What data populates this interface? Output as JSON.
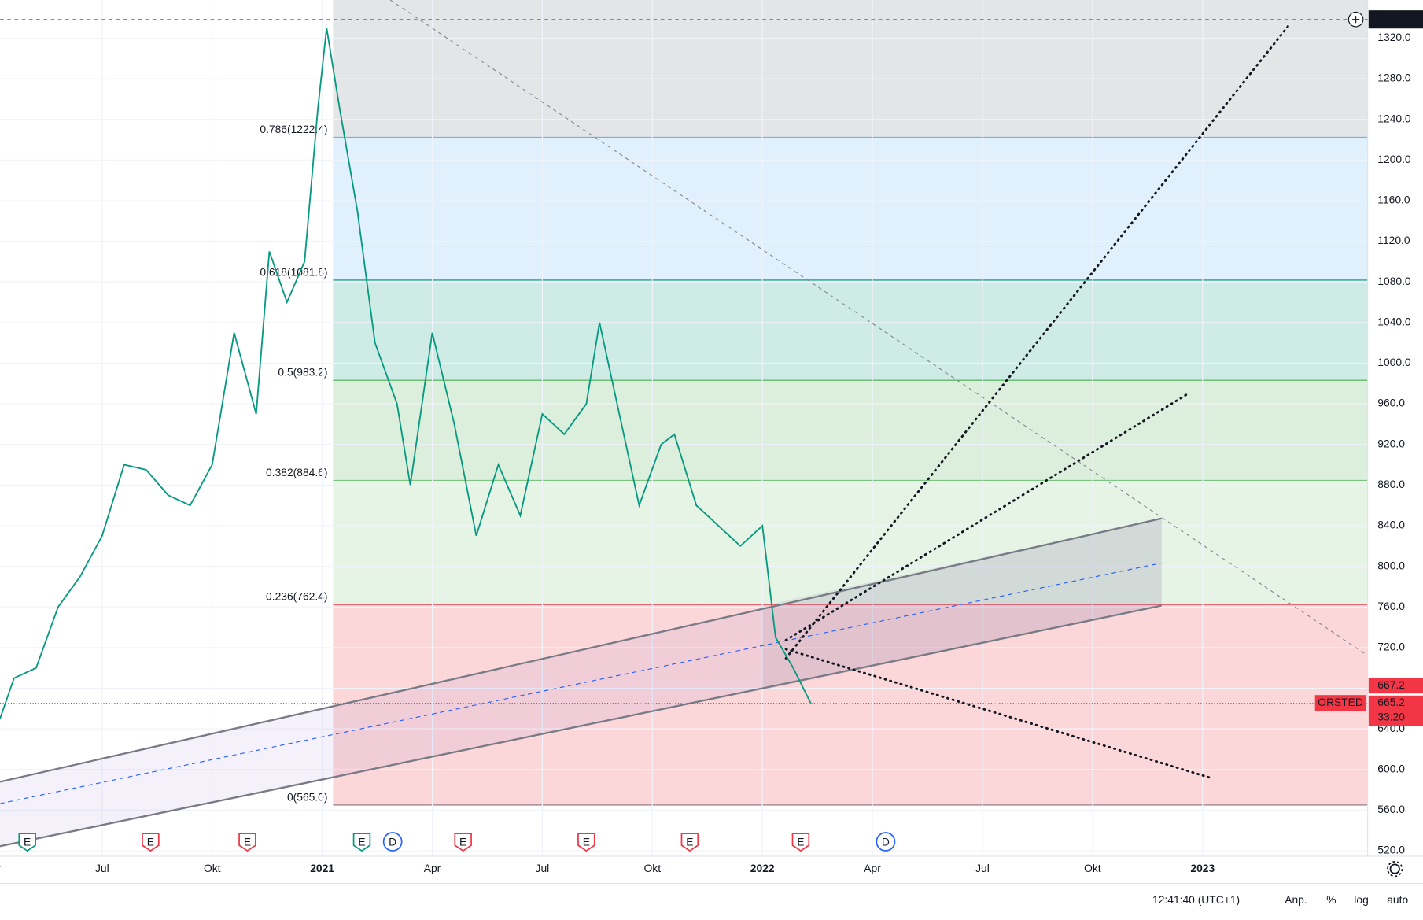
{
  "chart_data": {
    "type": "line",
    "symbol": "ORSTED",
    "x": [
      2020.268,
      2020.3,
      2020.35,
      2020.4,
      2020.45,
      2020.5,
      2020.55,
      2020.6,
      2020.65,
      2020.7,
      2020.75,
      2020.8,
      2020.85,
      2020.88,
      2020.92,
      2020.96,
      2020.99,
      2021.01,
      2021.04,
      2021.08,
      2021.12,
      2021.17,
      2021.2,
      2021.25,
      2021.3,
      2021.35,
      2021.4,
      2021.45,
      2021.5,
      2021.55,
      2021.6,
      2021.63,
      2021.67,
      2021.72,
      2021.77,
      2021.8,
      2021.85,
      2021.9,
      2021.95,
      2022.0,
      2022.03,
      2022.07,
      2022.11
    ],
    "series": [
      {
        "color": "#089981",
        "values": [
          650,
          690,
          700,
          760,
          790,
          830,
          900,
          895,
          870,
          860,
          900,
          1030,
          950,
          1110,
          1060,
          1100,
          1250,
          1330,
          1250,
          1150,
          1020,
          960,
          880,
          1030,
          940,
          830,
          900,
          850,
          950,
          930,
          960,
          1040,
          960,
          860,
          920,
          930,
          860,
          840,
          820,
          840,
          730,
          700,
          665.2
        ]
      }
    ],
    "xlim": [
      2020.268,
      2023.375
    ],
    "ylim": [
      514.6,
      1357.5
    ],
    "xticks": [
      {
        "value": 2020.25,
        "label": "Apr"
      },
      {
        "value": 2020.5,
        "label": "Jul"
      },
      {
        "value": 2020.75,
        "label": "Okt"
      },
      2021,
      {
        "value": 2021.25,
        "label": "Apr"
      },
      {
        "value": 2021.5,
        "label": "Jul"
      },
      {
        "value": 2021.75,
        "label": "Okt"
      },
      2022,
      {
        "value": 2022.25,
        "label": "Apr"
      },
      {
        "value": 2022.5,
        "label": "Jul"
      },
      {
        "value": 2022.75,
        "label": "Okt"
      },
      2023
    ],
    "yticks": [
      {
        "value": 520,
        "label": "520.0"
      },
      {
        "value": 560,
        "label": "560.0"
      },
      {
        "value": 600,
        "label": "600.0"
      },
      {
        "value": 640,
        "label": "640.0"
      },
      {
        "value": 680,
        "label": "680.0"
      },
      {
        "value": 720,
        "label": "720.0"
      },
      {
        "value": 760,
        "label": "760.0"
      },
      {
        "value": 800,
        "label": "800.0"
      },
      {
        "value": 840,
        "label": "840.0"
      },
      {
        "value": 880,
        "label": "880.0"
      },
      {
        "value": 920,
        "label": "920.0"
      },
      {
        "value": 960,
        "label": "960.0"
      },
      {
        "value": 1000,
        "label": "1000.0"
      },
      {
        "value": 1040,
        "label": "1040.0"
      },
      {
        "value": 1080,
        "label": "1080.0"
      },
      {
        "value": 1120,
        "label": "1120.0"
      },
      {
        "value": 1160,
        "label": "1160.0"
      },
      {
        "value": 1200,
        "label": "1200.0"
      },
      {
        "value": 1240,
        "label": "1240.0"
      },
      {
        "value": 1280,
        "label": "1280.0"
      },
      {
        "value": 1320,
        "label": "1320.0"
      }
    ],
    "grid": true,
    "fib_levels": [
      {
        "price": 565.0,
        "label": "0(565.0)",
        "color": "#787b86"
      },
      {
        "price": 762.4,
        "label": "0.236(762.4)",
        "color": "#f23645"
      },
      {
        "price": 884.6,
        "label": "0.382(884.6)",
        "color": "#81c784"
      },
      {
        "price": 983.2,
        "label": "0.5(983.2)",
        "color": "#4caf50"
      },
      {
        "price": 1081.8,
        "label": "0.618(1081.8)",
        "color": "#089981"
      },
      {
        "price": 1222.4,
        "label": "0.786(1222.4)",
        "color": "#64b5f6"
      }
    ],
    "fib_top_color": "#787b86",
    "crosshair_price": 1338.4,
    "price_tags": [
      {
        "value": 667.2
      },
      {
        "value": 665.2,
        "countdown": "33:20"
      }
    ],
    "tag_color": "#f23645",
    "events": [
      {
        "x": 2020.33,
        "label": "E",
        "color": "#089981"
      },
      {
        "x": 2020.61,
        "label": "E",
        "color": "#f23645"
      },
      {
        "x": 2020.83,
        "label": "E",
        "color": "#f23645"
      },
      {
        "x": 2021.09,
        "label": "E",
        "color": "#089981"
      },
      {
        "x": 2021.16,
        "label": "D",
        "color": "#2962ff"
      },
      {
        "x": 2021.32,
        "label": "E",
        "color": "#f23645"
      },
      {
        "x": 2021.6,
        "label": "E",
        "color": "#f23645"
      },
      {
        "x": 2021.835,
        "label": "E",
        "color": "#f23645"
      },
      {
        "x": 2022.087,
        "label": "E",
        "color": "#f23645"
      },
      {
        "x": 2022.28,
        "label": "D",
        "color": "#2962ff"
      }
    ],
    "footer": {
      "time": "12:41:40 (UTC+1)",
      "buttons": [
        "Anp.",
        "%",
        "log",
        "auto"
      ]
    }
  }
}
